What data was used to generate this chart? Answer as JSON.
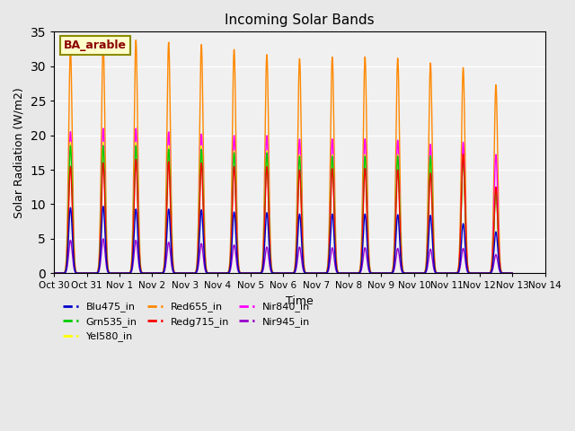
{
  "title": "Incoming Solar Bands",
  "ylabel": "Solar Radiation (W/m2)",
  "xlabel": "Time",
  "ylim": [
    0,
    35
  ],
  "annotation_label": "BA_arable",
  "legend": [
    {
      "label": "Blu475_in",
      "color": "#0000cc"
    },
    {
      "label": "Grn535_in",
      "color": "#00cc00"
    },
    {
      "label": "Yel580_in",
      "color": "#ffff00"
    },
    {
      "label": "Red655_in",
      "color": "#ff8800"
    },
    {
      "label": "Redg715_in",
      "color": "#ff0000"
    },
    {
      "label": "Nir840_in",
      "color": "#ff00ff"
    },
    {
      "label": "Nir945_in",
      "color": "#9900cc"
    }
  ],
  "x_tick_labels": [
    "Oct 30",
    "Oct 31",
    "Nov 1",
    "Nov 2",
    "Nov 3",
    "Nov 4",
    "Nov 5",
    "Nov 6",
    "Nov 7",
    "Nov 8",
    "Nov 9",
    "Nov 10",
    "Nov 11",
    "Nov 12",
    "Nov 13",
    "Nov 14"
  ],
  "num_peaks": 14,
  "peaks": {
    "Blu475_in": [
      9.5,
      9.7,
      9.3,
      9.3,
      9.2,
      8.9,
      8.8,
      8.6,
      8.6,
      8.6,
      8.5,
      8.4,
      7.2,
      6.0
    ],
    "Grn535_in": [
      18.5,
      18.5,
      18.5,
      18.0,
      18.0,
      17.5,
      17.5,
      17.0,
      17.0,
      17.0,
      17.0,
      17.0,
      16.5,
      12.0
    ],
    "Yel580_in": [
      19.0,
      19.0,
      19.0,
      18.5,
      18.5,
      17.8,
      17.8,
      17.2,
      17.2,
      17.2,
      17.2,
      17.0,
      17.0,
      12.5
    ],
    "Red655_in": [
      32.5,
      33.3,
      33.8,
      33.5,
      33.2,
      32.5,
      31.8,
      31.2,
      31.4,
      31.4,
      31.2,
      30.5,
      29.8,
      27.3
    ],
    "Redg715_in": [
      15.5,
      16.0,
      16.5,
      16.2,
      16.0,
      15.5,
      15.5,
      15.0,
      15.2,
      15.2,
      15.0,
      14.5,
      17.3,
      12.5
    ],
    "Nir840_in": [
      20.5,
      21.0,
      21.0,
      20.5,
      20.2,
      20.0,
      20.0,
      19.5,
      19.5,
      19.5,
      19.3,
      18.7,
      19.0,
      17.2
    ],
    "Nir945_in": [
      4.8,
      5.0,
      4.8,
      4.5,
      4.3,
      4.1,
      3.8,
      3.8,
      3.7,
      3.7,
      3.6,
      3.5,
      3.6,
      2.7
    ]
  },
  "colors": {
    "Blu475_in": "#0000cc",
    "Grn535_in": "#00cc00",
    "Yel580_in": "#ffff00",
    "Red655_in": "#ff8800",
    "Redg715_in": "#ff0000",
    "Nir840_in": "#ff00ff",
    "Nir945_in": "#9900cc"
  },
  "plot_order": [
    "Red655_in",
    "Nir840_in",
    "Yel580_in",
    "Grn535_in",
    "Redg715_in",
    "Nir945_in",
    "Blu475_in"
  ]
}
